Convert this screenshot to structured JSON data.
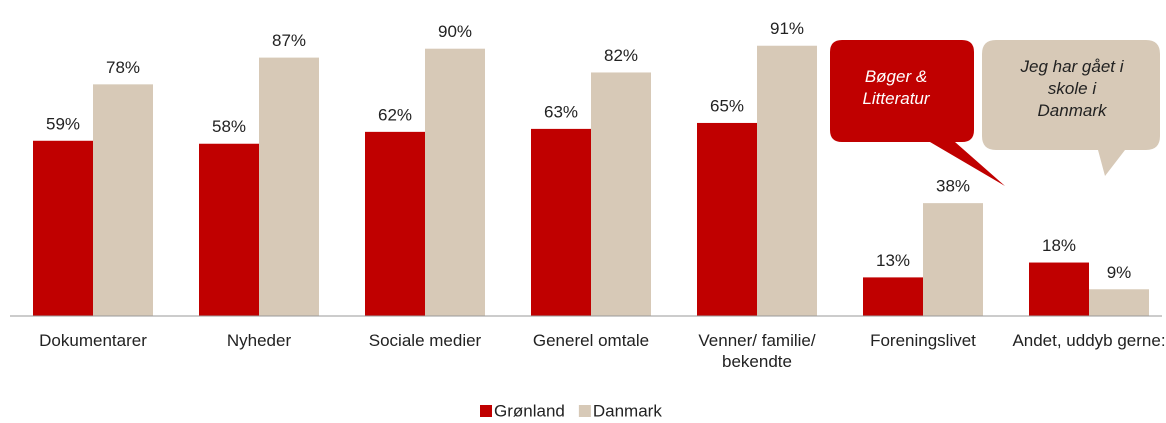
{
  "chart_data": {
    "type": "bar",
    "categories": [
      "Dokumentarer",
      "Nyheder",
      "Sociale medier",
      "Generel omtale",
      "Venner/ familie/ bekendte",
      "Foreningslivet",
      "Andet, uddyb gerne:"
    ],
    "series": [
      {
        "name": "Grønland",
        "color": "#c00000",
        "values": [
          59,
          58,
          62,
          63,
          65,
          13,
          18
        ],
        "value_labels": [
          "59%",
          "58%",
          "62%",
          "63%",
          "65%",
          "13%",
          "18%"
        ]
      },
      {
        "name": "Danmark",
        "color": "#d7c9b7",
        "values": [
          78,
          87,
          90,
          82,
          91,
          38,
          9
        ],
        "value_labels": [
          "78%",
          "87%",
          "90%",
          "82%",
          "91%",
          "38%",
          "9%"
        ]
      }
    ],
    "ylim": [
      0,
      100
    ],
    "annotations": [
      "Bøger & Litteratur",
      "Jeg har gået i skole i Danmark"
    ],
    "legend": "bottom"
  }
}
